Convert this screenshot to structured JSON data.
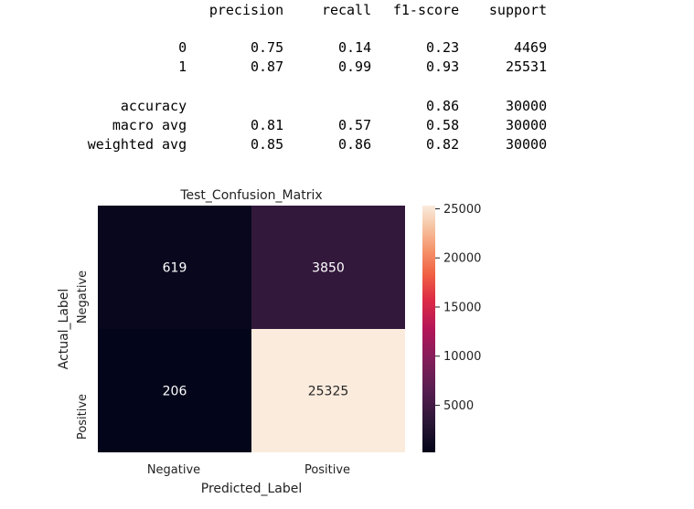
{
  "report": {
    "columns": [
      "precision",
      "recall",
      "f1-score",
      "support"
    ],
    "rows": [
      {
        "label": "0",
        "values": [
          "0.75",
          "0.14",
          "0.23",
          "4469"
        ]
      },
      {
        "label": "1",
        "values": [
          "0.87",
          "0.99",
          "0.93",
          "25531"
        ]
      },
      {
        "label": "accuracy",
        "values": [
          "",
          "",
          "0.86",
          "30000"
        ]
      },
      {
        "label": "macro avg",
        "values": [
          "0.81",
          "0.57",
          "0.58",
          "30000"
        ]
      },
      {
        "label": "weighted avg",
        "values": [
          "0.85",
          "0.86",
          "0.82",
          "30000"
        ]
      }
    ]
  },
  "chart_data": {
    "type": "heatmap",
    "title": "Test_Confusion_Matrix",
    "xlabel": "Predicted_Label",
    "ylabel": "Actual_Label",
    "x_categories": [
      "Negative",
      "Positive"
    ],
    "y_categories": [
      "Negative",
      "Positive"
    ],
    "values": [
      [
        619,
        3850
      ],
      [
        206,
        25325
      ]
    ],
    "colorbar": {
      "ticks": [
        5000,
        10000,
        15000,
        20000,
        25000
      ],
      "range": [
        206,
        25325
      ],
      "colormap": "rocket"
    },
    "colors": {
      "dark": "#03051a",
      "mid": "#3d1d44",
      "light": "#faebdd"
    }
  }
}
